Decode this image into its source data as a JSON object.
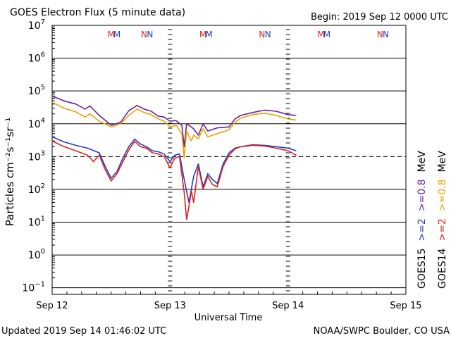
{
  "header": {
    "title": "GOES Electron Flux (5 minute data)",
    "begin": "Begin: 2019 Sep 12 0000 UTC"
  },
  "footer": {
    "updated": "Updated 2019 Sep 14 01:46:02 UTC",
    "credit": "NOAA/SWPC Boulder, CO USA"
  },
  "colors": {
    "goes15_gt2": "#1f3fbf",
    "goes15_gt08": "#6a1fa0",
    "goes14_gt2": "#e01f1f",
    "goes14_gt08": "#e8a400",
    "text": "#000000"
  },
  "markers": {
    "M": "M",
    "N": "N",
    "rows": [
      {
        "label": "M",
        "color": "red",
        "value": 12.5
      },
      {
        "label": "M",
        "color": "blue",
        "value": 12.55
      },
      {
        "label": "N",
        "color": "red",
        "value": 12.78
      },
      {
        "label": "N",
        "color": "blue",
        "value": 12.83
      },
      {
        "label": "M",
        "color": "red",
        "value": 13.28
      },
      {
        "label": "M",
        "color": "blue",
        "value": 13.33
      },
      {
        "label": "N",
        "color": "red",
        "value": 13.78
      },
      {
        "label": "N",
        "color": "blue",
        "value": 13.83
      },
      {
        "label": "M",
        "color": "red",
        "value": 14.28
      },
      {
        "label": "M",
        "color": "blue",
        "value": 14.33
      },
      {
        "label": "N",
        "color": "red",
        "value": 14.78
      },
      {
        "label": "N",
        "color": "blue",
        "value": 14.83
      }
    ]
  },
  "legend": {
    "col1": [
      {
        "text": "GOES15",
        "color": "#000000"
      },
      {
        "text": ">=2",
        "color": "#1f3fbf"
      },
      {
        "text": ">=0.8",
        "color": "#6a1fa0"
      },
      {
        "text": "MeV",
        "color": "#000000"
      }
    ],
    "col2": [
      {
        "text": "GOES14",
        "color": "#000000"
      },
      {
        "text": ">=2",
        "color": "#e01f1f"
      },
      {
        "text": ">=0.8",
        "color": "#e8a400"
      },
      {
        "text": "MeV",
        "color": "#000000"
      }
    ]
  },
  "chart_data": {
    "type": "line",
    "title": "GOES Electron Flux (5 minute data)",
    "xlabel": "Universal Time",
    "ylabel": "Particles cm⁻²s⁻¹sr⁻¹",
    "xticks": [
      {
        "value": 12,
        "label": "Sep 12"
      },
      {
        "value": 13,
        "label": "Sep 13"
      },
      {
        "value": 14,
        "label": "Sep 14"
      },
      {
        "value": 15,
        "label": "Sep 15"
      }
    ],
    "yticks": [
      {
        "exp": -1,
        "label": "10",
        "sup": "−1"
      },
      {
        "exp": 0,
        "label": "10",
        "sup": "0"
      },
      {
        "exp": 1,
        "label": "10",
        "sup": "1"
      },
      {
        "exp": 2,
        "label": "10",
        "sup": "2"
      },
      {
        "exp": 3,
        "label": "10",
        "sup": "3"
      },
      {
        "exp": 4,
        "label": "10",
        "sup": "4"
      },
      {
        "exp": 5,
        "label": "10",
        "sup": "5"
      },
      {
        "exp": 6,
        "label": "10",
        "sup": "6"
      },
      {
        "exp": 7,
        "label": "10",
        "sup": "7"
      }
    ],
    "xlim": [
      12,
      15
    ],
    "ylim_log10": [
      -1.2,
      7
    ],
    "threshold": 1000,
    "series": [
      {
        "name": "GOES15 >=0.8 MeV",
        "color": "#6a1fa0",
        "x": [
          12.0,
          12.1,
          12.2,
          12.28,
          12.32,
          12.4,
          12.5,
          12.58,
          12.65,
          12.72,
          12.78,
          12.84,
          12.9,
          12.95,
          13.0,
          13.05,
          13.1,
          13.12,
          13.14,
          13.18,
          13.2,
          13.24,
          13.28,
          13.32,
          13.4,
          13.5,
          13.55,
          13.6,
          13.7,
          13.8,
          13.9,
          14.0,
          14.07
        ],
        "y": [
          70000,
          50000,
          40000,
          28000,
          35000,
          18000,
          9000,
          11000,
          25000,
          36000,
          28000,
          24000,
          17000,
          16000,
          12000,
          12500,
          9000,
          2000,
          10000,
          8000,
          7000,
          4500,
          10000,
          6000,
          7500,
          8000,
          14000,
          18000,
          22000,
          26000,
          24000,
          19000,
          18000
        ]
      },
      {
        "name": "GOES14 >=0.8 MeV",
        "color": "#e8a400",
        "x": [
          12.0,
          12.1,
          12.2,
          12.28,
          12.32,
          12.4,
          12.5,
          12.58,
          12.65,
          12.72,
          12.78,
          12.84,
          12.9,
          12.95,
          13.0,
          13.05,
          13.1,
          13.12,
          13.14,
          13.18,
          13.2,
          13.24,
          13.28,
          13.32,
          13.4,
          13.5,
          13.55,
          13.6,
          13.7,
          13.8,
          13.9,
          14.0,
          14.07
        ],
        "y": [
          45000,
          30000,
          23000,
          16000,
          20000,
          12000,
          8000,
          10000,
          18000,
          28000,
          22000,
          19000,
          14000,
          12000,
          8000,
          9000,
          5000,
          900,
          6000,
          3000,
          4500,
          3500,
          7000,
          4000,
          5000,
          6500,
          11000,
          15000,
          19000,
          21000,
          18000,
          14000,
          13000
        ]
      },
      {
        "name": "GOES15 >=2 MeV",
        "color": "#1f3fbf",
        "x": [
          12.0,
          12.1,
          12.2,
          12.3,
          12.4,
          12.45,
          12.5,
          12.55,
          12.6,
          12.65,
          12.7,
          12.75,
          12.8,
          12.85,
          12.9,
          12.95,
          13.0,
          13.04,
          13.08,
          13.12,
          13.16,
          13.2,
          13.24,
          13.28,
          13.32,
          13.36,
          13.4,
          13.45,
          13.5,
          13.55,
          13.6,
          13.7,
          13.8,
          13.9,
          14.0,
          14.07
        ],
        "y": [
          4000,
          2800,
          2200,
          1800,
          1300,
          500,
          220,
          350,
          900,
          2000,
          3400,
          2400,
          2000,
          1500,
          1400,
          1200,
          700,
          1100,
          1200,
          200,
          40,
          250,
          600,
          120,
          300,
          200,
          150,
          600,
          1300,
          1800,
          2000,
          2300,
          2200,
          2000,
          1800,
          1500
        ]
      },
      {
        "name": "GOES14 >=2 MeV",
        "color": "#e01f1f",
        "x": [
          12.0,
          12.1,
          12.2,
          12.3,
          12.35,
          12.4,
          12.45,
          12.5,
          12.55,
          12.6,
          12.65,
          12.7,
          12.75,
          12.8,
          12.85,
          12.9,
          12.95,
          13.0,
          13.04,
          13.08,
          13.12,
          13.14,
          13.16,
          13.18,
          13.2,
          13.24,
          13.28,
          13.32,
          13.36,
          13.4,
          13.45,
          13.5,
          13.55,
          13.6,
          13.7,
          13.8,
          13.9,
          14.0,
          14.07
        ],
        "y": [
          3000,
          2000,
          1500,
          1100,
          700,
          1100,
          400,
          180,
          300,
          700,
          1600,
          2900,
          2000,
          1800,
          1300,
          1200,
          1000,
          450,
          900,
          1000,
          80,
          12,
          30,
          90,
          40,
          500,
          100,
          250,
          140,
          120,
          500,
          1100,
          1700,
          2000,
          2200,
          2100,
          1800,
          1500,
          1100
        ]
      }
    ]
  }
}
